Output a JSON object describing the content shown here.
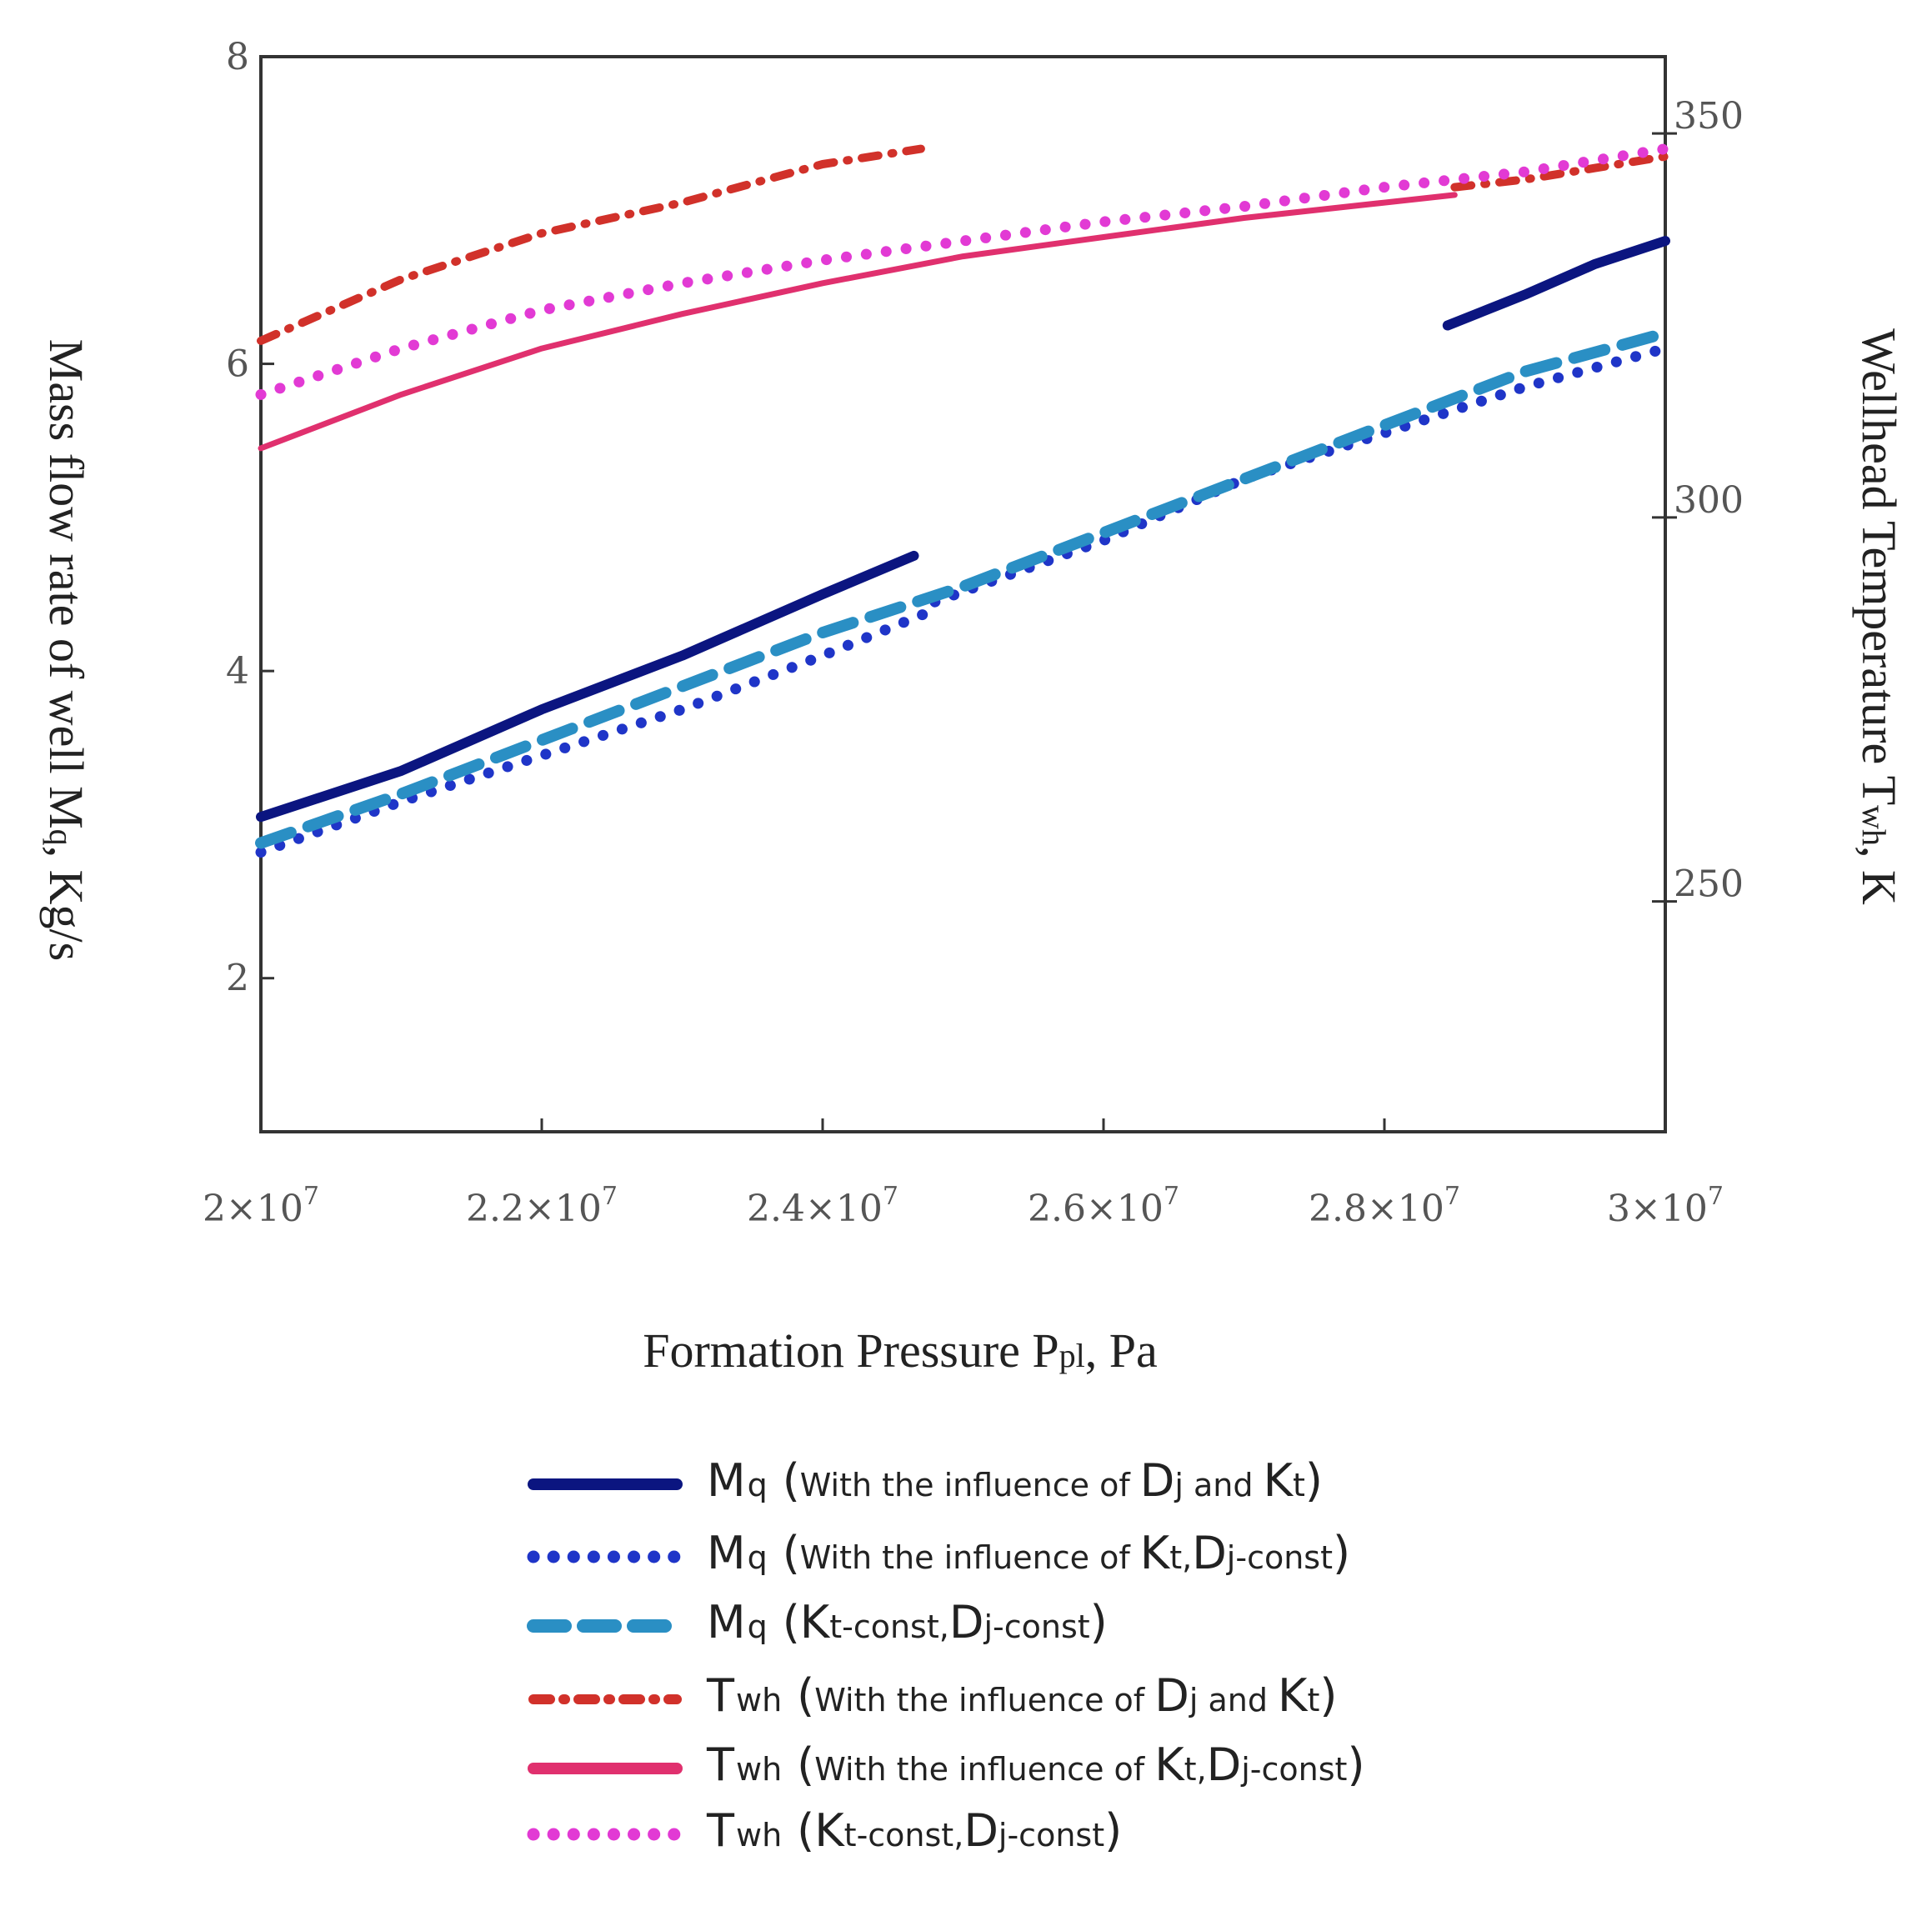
{
  "chart_data": {
    "type": "line",
    "xlabel": {
      "main": "Formation Pressure P",
      "sub": "pl",
      "rest": ", Pa"
    },
    "ylabel_left": {
      "main": "Mass flow rate of well M",
      "sub": "q",
      "rest": ", Kg/s"
    },
    "ylabel_right": {
      "main": "Wellhead Temperature T",
      "sub": "wh",
      "rest": ", K"
    },
    "xlim": [
      20000000,
      30000000
    ],
    "ylim_left": [
      1,
      8
    ],
    "ylim_right": [
      220,
      360
    ],
    "x_ticks": [
      {
        "value": 20000000,
        "mant": "2",
        "base": "×10",
        "exp": "7"
      },
      {
        "value": 22000000,
        "mant": "2.2",
        "base": "×10",
        "exp": "7"
      },
      {
        "value": 24000000,
        "mant": "2.4",
        "base": "×10",
        "exp": "7"
      },
      {
        "value": 26000000,
        "mant": "2.6",
        "base": "×10",
        "exp": "7"
      },
      {
        "value": 28000000,
        "mant": "2.8",
        "base": "×10",
        "exp": "7"
      },
      {
        "value": 30000000,
        "mant": "3",
        "base": "×10",
        "exp": "7"
      }
    ],
    "y_left_ticks": [
      "2",
      "4",
      "6",
      "8"
    ],
    "y_right_ticks": [
      "250",
      "300",
      "350"
    ],
    "series": [
      {
        "name": "Mq (With the influence of Dj and Kt)",
        "axis": "left",
        "color": "#0b1580",
        "style": "solid",
        "segments": [
          {
            "x": [
              20000000,
              21000000,
              22000000,
              23000000,
              24000000,
              24650000
            ],
            "y": [
              3.05,
              3.35,
              3.75,
              4.1,
              4.5,
              4.75
            ]
          },
          {
            "x": [
              28450000,
              29000000,
              29500000,
              30000000
            ],
            "y": [
              6.25,
              6.45,
              6.65,
              6.8
            ]
          }
        ]
      },
      {
        "name": "Mq (With the influence of Kt,Dj-const)",
        "axis": "left",
        "color": "#1f35c8",
        "style": "dotted",
        "segments": [
          {
            "x": [
              20000000,
              21000000,
              22000000,
              23000000,
              24000000,
              24800000
            ],
            "y": [
              2.82,
              3.15,
              3.45,
              3.75,
              4.1,
              4.4
            ]
          },
          {
            "x": [
              24800000,
              26000000,
              27000000,
              28000000,
              29000000,
              30000000
            ],
            "y": [
              4.45,
              4.85,
              5.25,
              5.55,
              5.85,
              6.1
            ]
          }
        ]
      },
      {
        "name": "Mq (Kt-const,Dj-const)",
        "axis": "left",
        "color": "#2a8fc4",
        "style": "dashed",
        "segments": [
          {
            "x": [
              20000000,
              21000000,
              22000000,
              23000000,
              24000000,
              25000000,
              26000000,
              27000000,
              28000000,
              29000000,
              30000000
            ],
            "y": [
              2.88,
              3.2,
              3.55,
              3.9,
              4.25,
              4.55,
              4.9,
              5.25,
              5.6,
              5.95,
              6.2
            ]
          }
        ]
      },
      {
        "name": "Twh (With the influence of Dj and Kt)",
        "axis": "right",
        "color": "#d1312a",
        "style": "dashdot",
        "segments": [
          {
            "x": [
              20000000,
              21000000,
              22000000,
              23000000,
              24000000,
              24700000
            ],
            "y": [
              323,
              331,
              337,
              341,
              346,
              348
            ]
          },
          {
            "x": [
              28500000,
              29000000,
              29500000,
              30000000
            ],
            "y": [
              343,
              344,
              345.5,
              347
            ]
          }
        ]
      },
      {
        "name": "Twh (With the influence of Kt,Dj-const)",
        "axis": "right",
        "color": "#e0306e",
        "style": "solid",
        "segments": [
          {
            "x": [
              20000000,
              21000000,
              22000000,
              23000000,
              24000000,
              25000000,
              26000000,
              27000000,
              28000000,
              28500000
            ],
            "y": [
              309,
              316,
              322,
              326.5,
              330.5,
              334,
              336.5,
              339,
              341,
              342
            ]
          }
        ]
      },
      {
        "name": "Twh (Kt-const,Dj-const)",
        "axis": "right",
        "color": "#e23ad4",
        "style": "dotted",
        "segments": [
          {
            "x": [
              20000000,
              21000000,
              22000000,
              23000000,
              24000000,
              25000000,
              26000000,
              27000000,
              28000000,
              29000000,
              30000000
            ],
            "y": [
              316,
              322,
              327,
              330.5,
              333.5,
              336,
              338.5,
              340.5,
              343,
              345,
              348
            ]
          }
        ]
      }
    ],
    "legend": [
      {
        "key": "mq_dj_kt",
        "main": "M",
        "sub": "q",
        "open": "(",
        "text": "With the influence of ",
        "b1": "D",
        "s1": "j",
        "mid": " and ",
        "b2": "K",
        "s2": "t",
        "close": ")"
      },
      {
        "key": "mq_kt",
        "main": "M",
        "sub": "q",
        "open": "(",
        "text": "With the influence of ",
        "b1": "K",
        "s1": "t",
        "mid": ",",
        "b2": "D",
        "s2": "j-const",
        "close": ")"
      },
      {
        "key": "mq_const",
        "main": "M",
        "sub": "q",
        "open": "(",
        "text": "",
        "b1": "K",
        "s1": "t-const",
        "mid": ",",
        "b2": "D",
        "s2": "j-const",
        "close": ")"
      },
      {
        "key": "twh_dj_kt",
        "main": "T",
        "sub": "wh",
        "open": "(",
        "text": "With the influence of ",
        "b1": "D",
        "s1": "j",
        "mid": " and ",
        "b2": "K",
        "s2": "t",
        "close": ")"
      },
      {
        "key": "twh_kt",
        "main": "T",
        "sub": "wh",
        "open": "(",
        "text": "With the influence of ",
        "b1": "K",
        "s1": "t",
        "mid": ",",
        "b2": "D",
        "s2": "j-const",
        "close": ")"
      },
      {
        "key": "twh_const",
        "main": "T",
        "sub": "wh",
        "open": "(",
        "text": "",
        "b1": "K",
        "s1": "t-const",
        "mid": ",",
        "b2": "D",
        "s2": "j-const",
        "close": ")"
      }
    ]
  }
}
